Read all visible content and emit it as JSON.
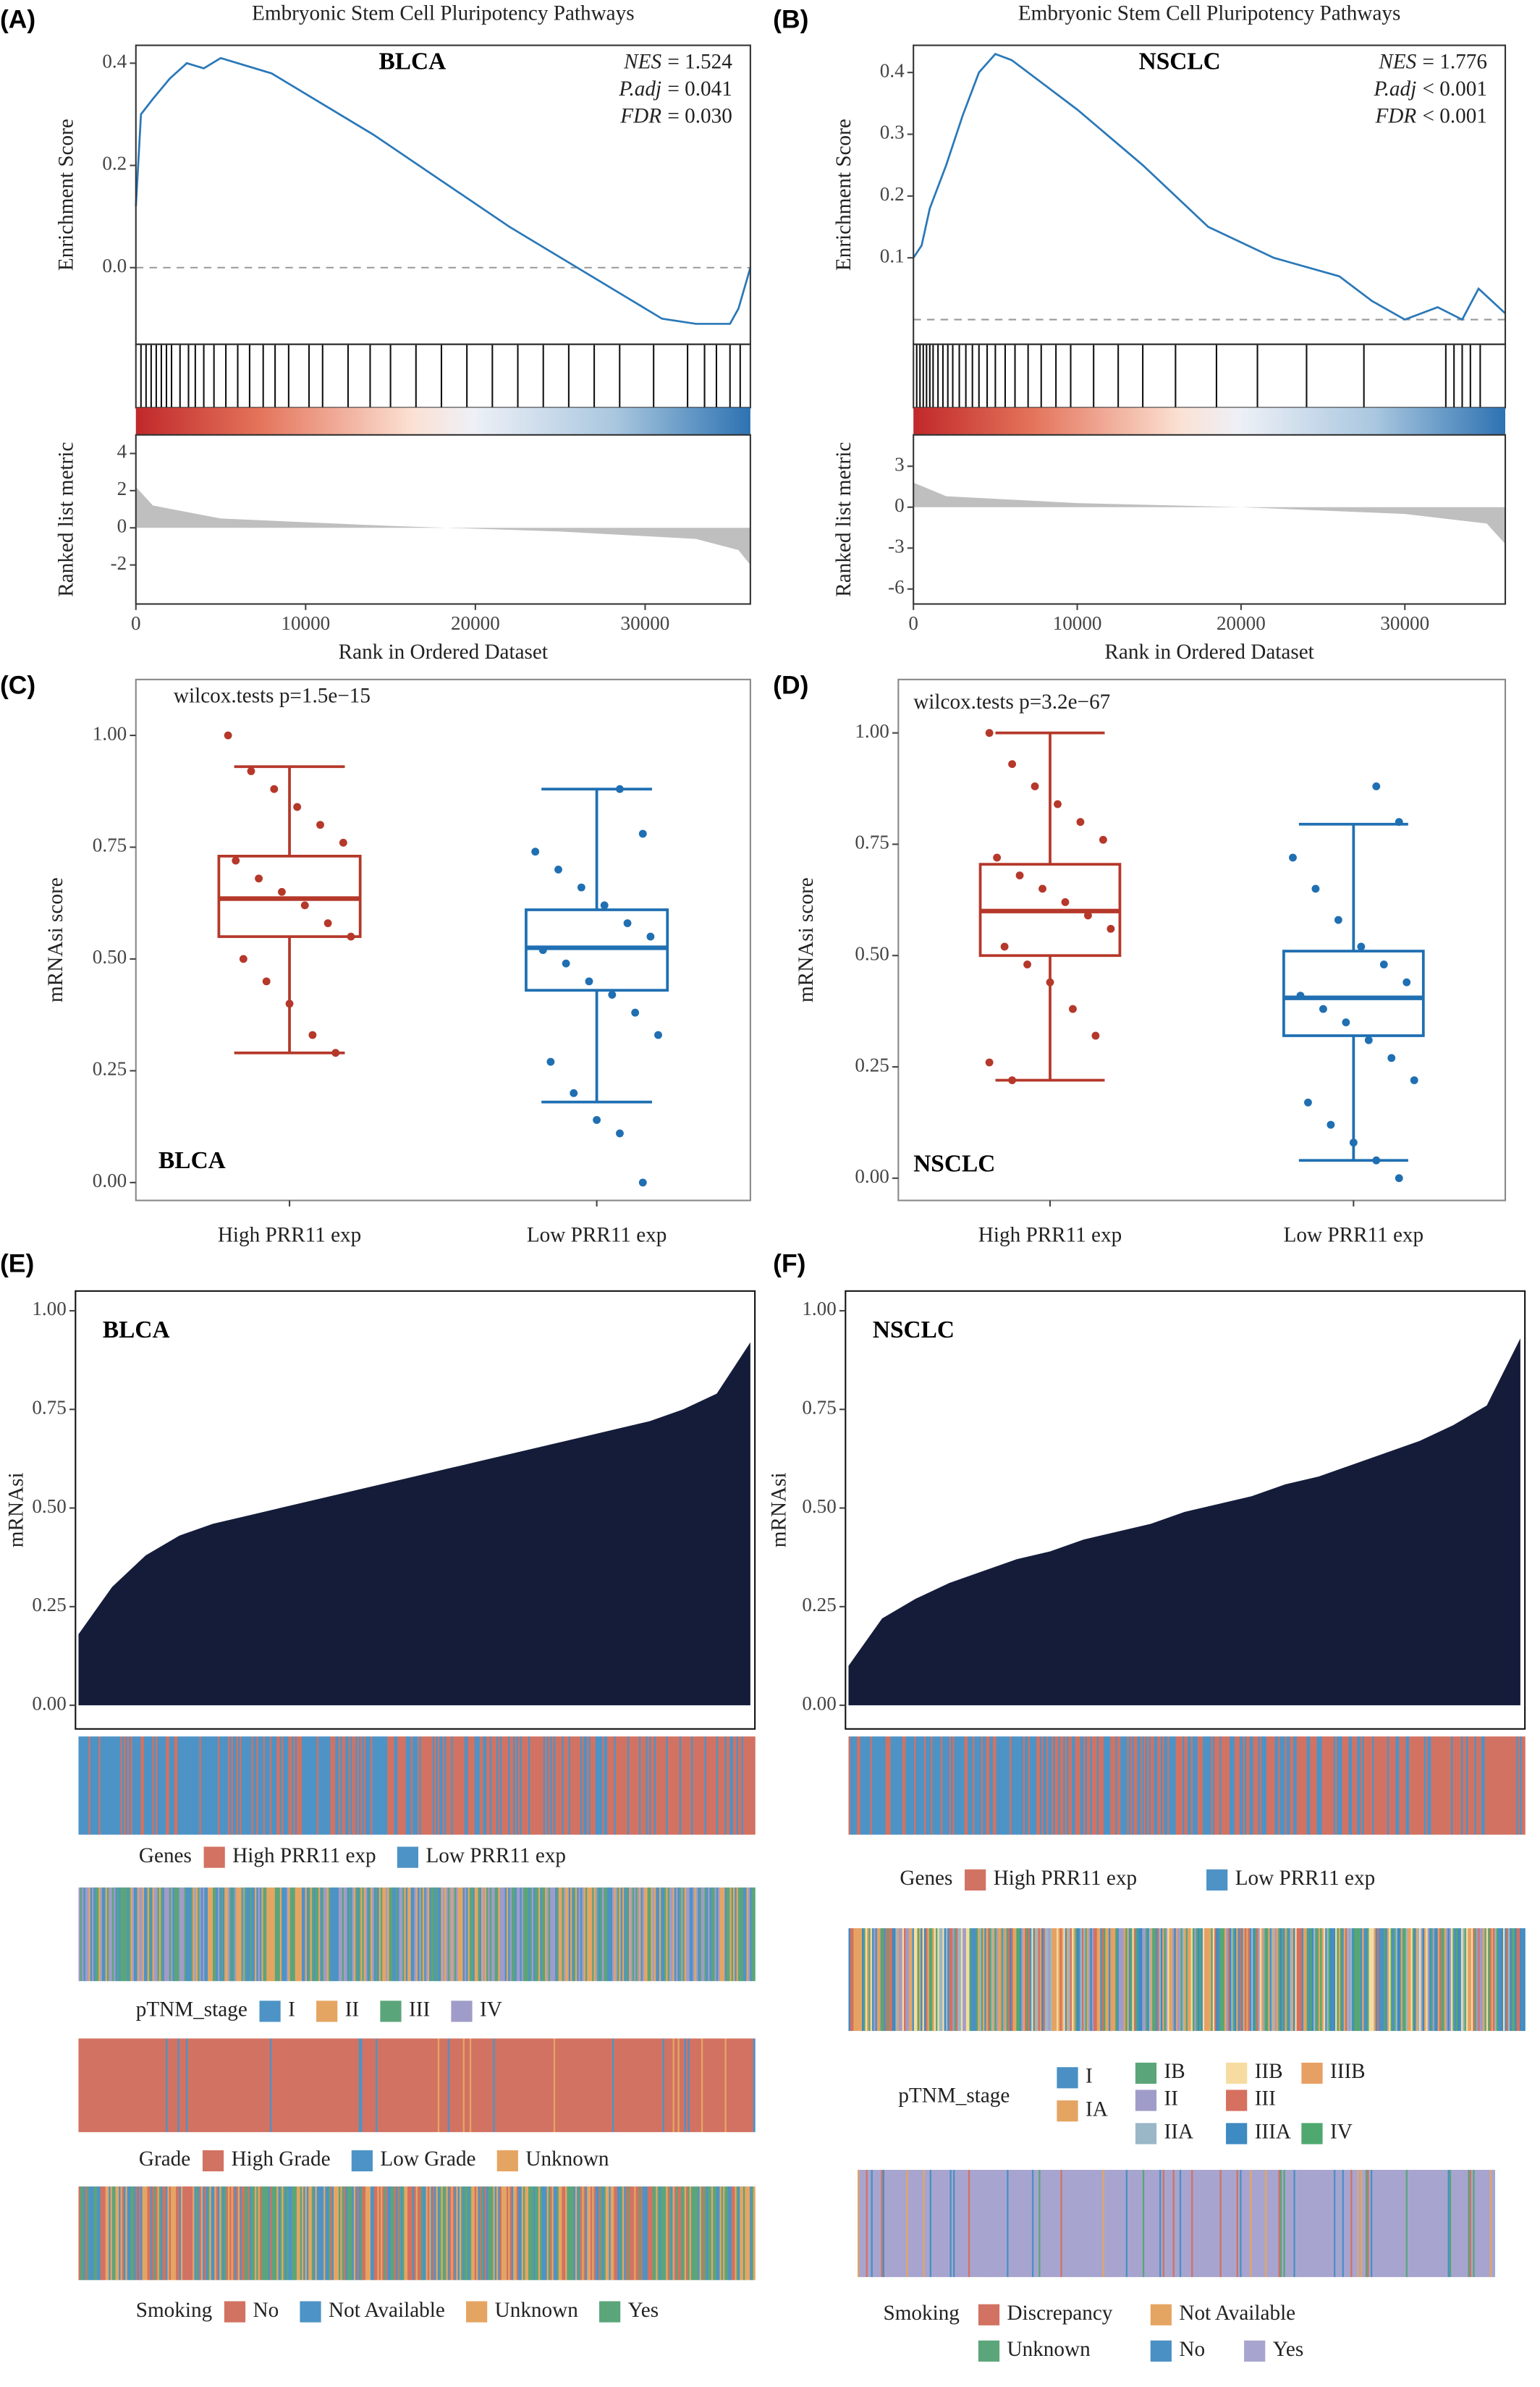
{
  "chart_data": [
    {
      "type": "gsea",
      "panel": "(A)",
      "title": "Embryonic Stem Cell Pluripotency Pathways",
      "label": "BLCA",
      "stats": [
        {
          "label": "NES",
          "text": "= 1.524"
        },
        {
          "label": "P.adj",
          "text": "= 0.041"
        },
        {
          "label": "FDR",
          "text": "= 0.030"
        }
      ],
      "ylabel": "Enrichment Score",
      "xlabel": "Rank in Ordered Dataset",
      "color": "#2a78b8",
      "x": [
        0,
        300,
        1000,
        2000,
        3000,
        4000,
        5000,
        6000,
        8000,
        10000,
        14000,
        18000,
        22000,
        26000,
        29000,
        31000,
        33000,
        35000,
        35500,
        36200
      ],
      "values": [
        0.12,
        0.3,
        0.33,
        0.37,
        0.4,
        0.39,
        0.41,
        0.4,
        0.38,
        0.34,
        0.26,
        0.17,
        0.08,
        0.0,
        -0.06,
        -0.1,
        -0.11,
        -0.11,
        -0.08,
        0.0
      ],
      "xlim": [
        0,
        36200
      ],
      "ylim": [
        -0.15,
        0.435
      ],
      "xticks": [
        0,
        10000,
        20000,
        30000
      ],
      "yticks": [
        {
          "value": 0,
          "label": "0.0"
        },
        0.2,
        0.4
      ],
      "hits": [
        300,
        600,
        900,
        1200,
        1500,
        1800,
        2100,
        2600,
        3100,
        3500,
        4000,
        4600,
        5300,
        6000,
        6700,
        7500,
        8200,
        9000,
        10200,
        11000,
        12500,
        13800,
        15000,
        16500,
        18000,
        19500,
        21000,
        22500,
        24000,
        25500,
        27000,
        28500,
        30500,
        32500,
        33500,
        34200,
        35000,
        35600
      ],
      "ranked": {
        "ylabel": "Ranked list metric",
        "color": "#bfbfbf",
        "x": [
          0,
          1000,
          5000,
          15000,
          25000,
          33000,
          35500,
          36200
        ],
        "values": [
          2.2,
          1.2,
          0.5,
          0.1,
          -0.2,
          -0.6,
          -1.2,
          -2.0
        ],
        "ylim": [
          -4.1,
          5.0
        ],
        "yticks": [
          -2,
          0,
          2,
          4
        ]
      }
    },
    {
      "type": "gsea",
      "panel": "(B)",
      "title": "Embryonic Stem Cell Pluripotency Pathways",
      "label": "NSCLC",
      "stats": [
        {
          "label": "NES",
          "text": "= 1.776"
        },
        {
          "label": "P.adj",
          "text": "< 0.001"
        },
        {
          "label": "FDR",
          "text": "< 0.001"
        }
      ],
      "ylabel": "Enrichment Score",
      "xlabel": "Rank in Ordered Dataset",
      "color": "#2a78b8",
      "x": [
        0,
        500,
        1000,
        2000,
        3000,
        4000,
        5000,
        6000,
        8000,
        10000,
        14000,
        18000,
        22000,
        26000,
        28000,
        30000,
        32000,
        33500,
        34500,
        36130
      ],
      "values": [
        0.1,
        0.12,
        0.18,
        0.25,
        0.33,
        0.4,
        0.43,
        0.42,
        0.38,
        0.34,
        0.25,
        0.15,
        0.1,
        0.07,
        0.03,
        0.0,
        0.02,
        0.0,
        0.05,
        0.01
      ],
      "xlim": [
        0,
        36130
      ],
      "ylim": [
        -0.04,
        0.444
      ],
      "xticks": [
        0,
        10000,
        20000,
        30000
      ],
      "yticks": [
        0.1,
        0.2,
        0.3,
        0.4
      ],
      "hits": [
        200,
        400,
        600,
        800,
        1000,
        1200,
        1500,
        1800,
        2100,
        2400,
        2800,
        3200,
        3600,
        4000,
        4500,
        5000,
        5600,
        6200,
        7000,
        7800,
        8700,
        9600,
        11000,
        12500,
        14000,
        16000,
        18500,
        21000,
        24000,
        27500,
        32500,
        33000,
        33500,
        34000,
        34600
      ],
      "ranked": {
        "ylabel": "Ranked list metric",
        "color": "#bfbfbf",
        "x": [
          0,
          2000,
          10000,
          20000,
          30000,
          35000,
          36130
        ],
        "values": [
          1.8,
          0.8,
          0.3,
          0,
          -0.5,
          -1.2,
          -2.7
        ],
        "ylim": [
          -7.1,
          5.3
        ],
        "yticks": [
          -6,
          -3,
          0,
          3
        ]
      }
    },
    {
      "type": "box",
      "panel": "(C)",
      "annotation": "wilcox.tests p=1.5e−15",
      "label": "BLCA",
      "ylabel": "mRNAsi score",
      "ylim": [
        -0.04,
        1.125
      ],
      "yticks": [
        {
          "value": 0,
          "label": "0.00"
        },
        0.25,
        {
          "value": 0.5,
          "label": "0.50"
        },
        0.75,
        {
          "value": 1,
          "label": "1.00"
        }
      ],
      "series": [
        {
          "name": "High PRR11 exp",
          "color": "#b5382a",
          "min": 0.29,
          "q1": 0.55,
          "median": 0.635,
          "q3": 0.73,
          "max": 0.93,
          "points": [
            1.0,
            0.92,
            0.88,
            0.84,
            0.8,
            0.76,
            0.72,
            0.68,
            0.65,
            0.62,
            0.58,
            0.55,
            0.5,
            0.45,
            0.4,
            0.33,
            0.29
          ]
        },
        {
          "name": "Low PRR11 exp",
          "color": "#1f6fb2",
          "min": 0.18,
          "q1": 0.43,
          "median": 0.525,
          "q3": 0.61,
          "max": 0.88,
          "points": [
            0.88,
            0.78,
            0.74,
            0.7,
            0.66,
            0.62,
            0.58,
            0.55,
            0.52,
            0.49,
            0.45,
            0.42,
            0.38,
            0.33,
            0.27,
            0.2,
            0.14,
            0.11,
            0.0
          ]
        }
      ]
    },
    {
      "type": "box",
      "panel": "(D)",
      "annotation": "wilcox.tests p=3.2e−67",
      "label": "NSCLC",
      "ylabel": "mRNAsi score",
      "ylim": [
        -0.05,
        1.12
      ],
      "yticks": [
        {
          "value": 0,
          "label": "0.00"
        },
        0.25,
        {
          "value": 0.5,
          "label": "0.50"
        },
        0.75,
        {
          "value": 1,
          "label": "1.00"
        }
      ],
      "series": [
        {
          "name": "High PRR11 exp",
          "color": "#b5382a",
          "min": 0.22,
          "q1": 0.5,
          "median": 0.6,
          "q3": 0.705,
          "max": 1.0,
          "points": [
            1.0,
            0.93,
            0.88,
            0.84,
            0.8,
            0.76,
            0.72,
            0.68,
            0.65,
            0.62,
            0.59,
            0.56,
            0.52,
            0.48,
            0.44,
            0.38,
            0.32,
            0.26,
            0.22
          ]
        },
        {
          "name": "Low PRR11 exp",
          "color": "#1f6fb2",
          "min": 0.04,
          "q1": 0.32,
          "median": 0.405,
          "q3": 0.51,
          "max": 0.795,
          "points": [
            0.88,
            0.8,
            0.72,
            0.65,
            0.58,
            0.52,
            0.48,
            0.44,
            0.41,
            0.38,
            0.35,
            0.31,
            0.27,
            0.22,
            0.17,
            0.12,
            0.08,
            0.04,
            0.0
          ]
        }
      ]
    },
    {
      "type": "waterfall",
      "panel": "(E)",
      "label": "BLCA",
      "ylabel": "mRNAsi",
      "color": "#141c3a",
      "values": [
        0.18,
        0.3,
        0.38,
        0.43,
        0.46,
        0.48,
        0.5,
        0.52,
        0.54,
        0.56,
        0.58,
        0.6,
        0.62,
        0.64,
        0.66,
        0.68,
        0.7,
        0.72,
        0.75,
        0.79,
        0.92
      ],
      "ylim": [
        -0.06,
        1.05
      ],
      "yticks": [
        {
          "value": 0,
          "label": "0.00"
        },
        0.25,
        {
          "value": 0.5,
          "label": "0.50"
        },
        0.75,
        {
          "value": 1,
          "label": "1.00"
        }
      ],
      "tracks": [
        {
          "name": "Genes",
          "legend": [
            {
              "name": "High PRR11 exp",
              "color": "#d27262"
            },
            {
              "name": "Low PRR11 exp",
              "color": "#4d93c6"
            }
          ]
        },
        {
          "name": "pTNM_stage",
          "legend": [
            {
              "name": "I",
              "color": "#4d93c6"
            },
            {
              "name": "II",
              "color": "#e5a562"
            },
            {
              "name": "III",
              "color": "#5ba57a"
            },
            {
              "name": "IV",
              "color": "#a09cc9"
            }
          ]
        },
        {
          "name": "Grade",
          "legend": [
            {
              "name": "High Grade",
              "color": "#d27262"
            },
            {
              "name": "Low Grade",
              "color": "#4d93c6"
            },
            {
              "name": "Unknown",
              "color": "#e5a562"
            }
          ]
        },
        {
          "name": "Smoking",
          "legend": [
            {
              "name": "No",
              "color": "#d27262"
            },
            {
              "name": "Not Available",
              "color": "#4d93c6"
            },
            {
              "name": "Unknown",
              "color": "#e5a562"
            },
            {
              "name": "Yes",
              "color": "#5ba57a"
            }
          ]
        }
      ]
    },
    {
      "type": "waterfall",
      "panel": "(F)",
      "label": "NSCLC",
      "ylabel": "mRNAsi",
      "color": "#141c3a",
      "values": [
        0.1,
        0.22,
        0.27,
        0.31,
        0.34,
        0.37,
        0.39,
        0.42,
        0.44,
        0.46,
        0.49,
        0.51,
        0.53,
        0.56,
        0.58,
        0.61,
        0.64,
        0.67,
        0.71,
        0.76,
        0.93
      ],
      "ylim": [
        -0.06,
        1.05
      ],
      "yticks": [
        {
          "value": 0,
          "label": "0.00"
        },
        0.25,
        {
          "value": 0.5,
          "label": "0.50"
        },
        0.75,
        {
          "value": 1,
          "label": "1.00"
        }
      ],
      "tracks": [
        {
          "name": "Genes",
          "legend": [
            {
              "name": "High PRR11 exp",
              "color": "#d27262"
            },
            {
              "name": "Low PRR11 exp",
              "color": "#4d93c6"
            }
          ]
        },
        {
          "name": "pTNM_stage",
          "legend": [
            {
              "name": "I",
              "color": "#4a90c4"
            },
            {
              "name": "IA",
              "color": "#e5a562"
            },
            {
              "name": "IB",
              "color": "#5ba57a"
            },
            {
              "name": "II",
              "color": "#a09cc9"
            },
            {
              "name": "IIA",
              "color": "#9ab7c7"
            },
            {
              "name": "IIB",
              "color": "#f6dca0"
            },
            {
              "name": "III",
              "color": "#d6705f"
            },
            {
              "name": "IIIA",
              "color": "#3e8ac2"
            },
            {
              "name": "IIIB",
              "color": "#e6a064"
            },
            {
              "name": "IV",
              "color": "#4fa870"
            }
          ]
        },
        {
          "name": "Smoking",
          "legend": [
            {
              "name": "Discrepancy",
              "color": "#d27262"
            },
            {
              "name": "Not Available",
              "color": "#e5a562"
            },
            {
              "name": "Unknown",
              "color": "#5ba57a"
            },
            {
              "name": "No",
              "color": "#4a90c4"
            },
            {
              "name": "Yes",
              "color": "#a7a5cf"
            }
          ]
        }
      ]
    }
  ]
}
